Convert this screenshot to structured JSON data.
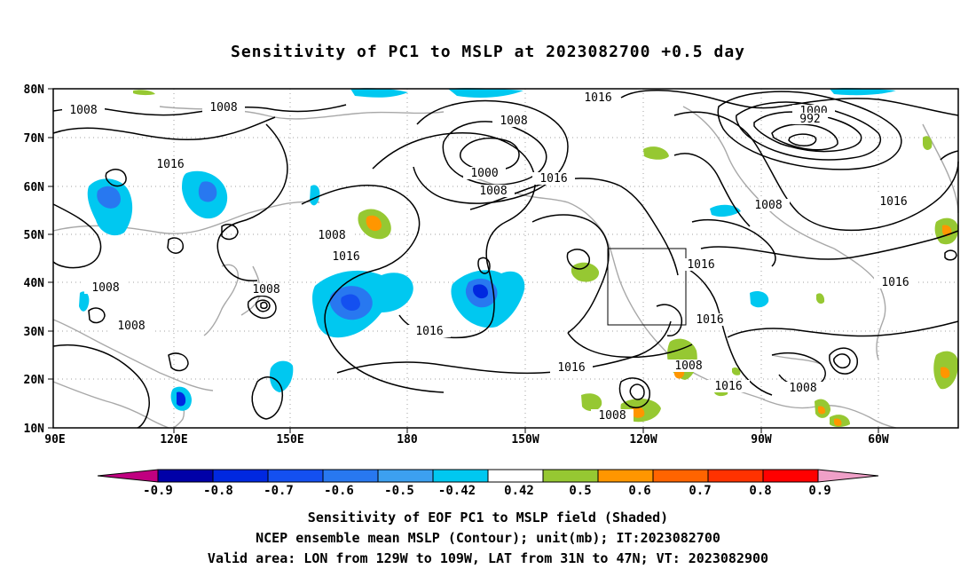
{
  "title": "Sensitivity of PC1 to MSLP at 2023082700 +0.5 day",
  "map": {
    "lon_labels": [
      "90E",
      "120E",
      "150E",
      "180",
      "150W",
      "120W",
      "90W",
      "60W"
    ],
    "lat_labels": [
      "80N",
      "70N",
      "60N",
      "50N",
      "40N",
      "30N",
      "20N",
      "10N"
    ],
    "contour_labels": [
      {
        "text": "1008"
      },
      {
        "text": "1008"
      },
      {
        "text": "1016"
      },
      {
        "text": "1008"
      },
      {
        "text": "1000"
      },
      {
        "text": "1008"
      },
      {
        "text": "1016"
      },
      {
        "text": "1016"
      },
      {
        "text": "1000"
      },
      {
        "text": "992"
      },
      {
        "text": "1008"
      },
      {
        "text": "1016"
      },
      {
        "text": "1008"
      },
      {
        "text": "1016"
      },
      {
        "text": "1008"
      },
      {
        "text": "1008"
      },
      {
        "text": "1016"
      },
      {
        "text": "1008"
      },
      {
        "text": "1016"
      },
      {
        "text": "1016"
      },
      {
        "text": "1016"
      },
      {
        "text": "1016"
      },
      {
        "text": "1008"
      },
      {
        "text": "1016"
      },
      {
        "text": "1008"
      },
      {
        "text": "1008"
      }
    ],
    "valid_box": {
      "lon_from": "129W",
      "lon_to": "109W",
      "lat_from": "31N",
      "lat_to": "47N"
    }
  },
  "colorbar": {
    "labels": [
      "-0.9",
      "-0.8",
      "-0.7",
      "-0.6",
      "-0.5",
      "-0.42",
      "0.42",
      "0.5",
      "0.6",
      "0.7",
      "0.8",
      "0.9"
    ],
    "colors": [
      "#c00080",
      "#0000a8",
      "#0028e0",
      "#1450f0",
      "#2878f0",
      "#3ca0f0",
      "#00c8f0",
      "#ffffff",
      "#96c832",
      "#ff9600",
      "#ff6400",
      "#ff3200",
      "#ff0000",
      "#f0a0c8"
    ]
  },
  "captions": {
    "line1": "Sensitivity of EOF PC1 to MSLP field (Shaded)",
    "line2": "NCEP ensemble mean MSLP (Contour); unit(mb); IT:2023082700",
    "line3": "Valid area: LON from 129W to 109W, LAT from 31N to 47N; VT: 2023082900"
  }
}
